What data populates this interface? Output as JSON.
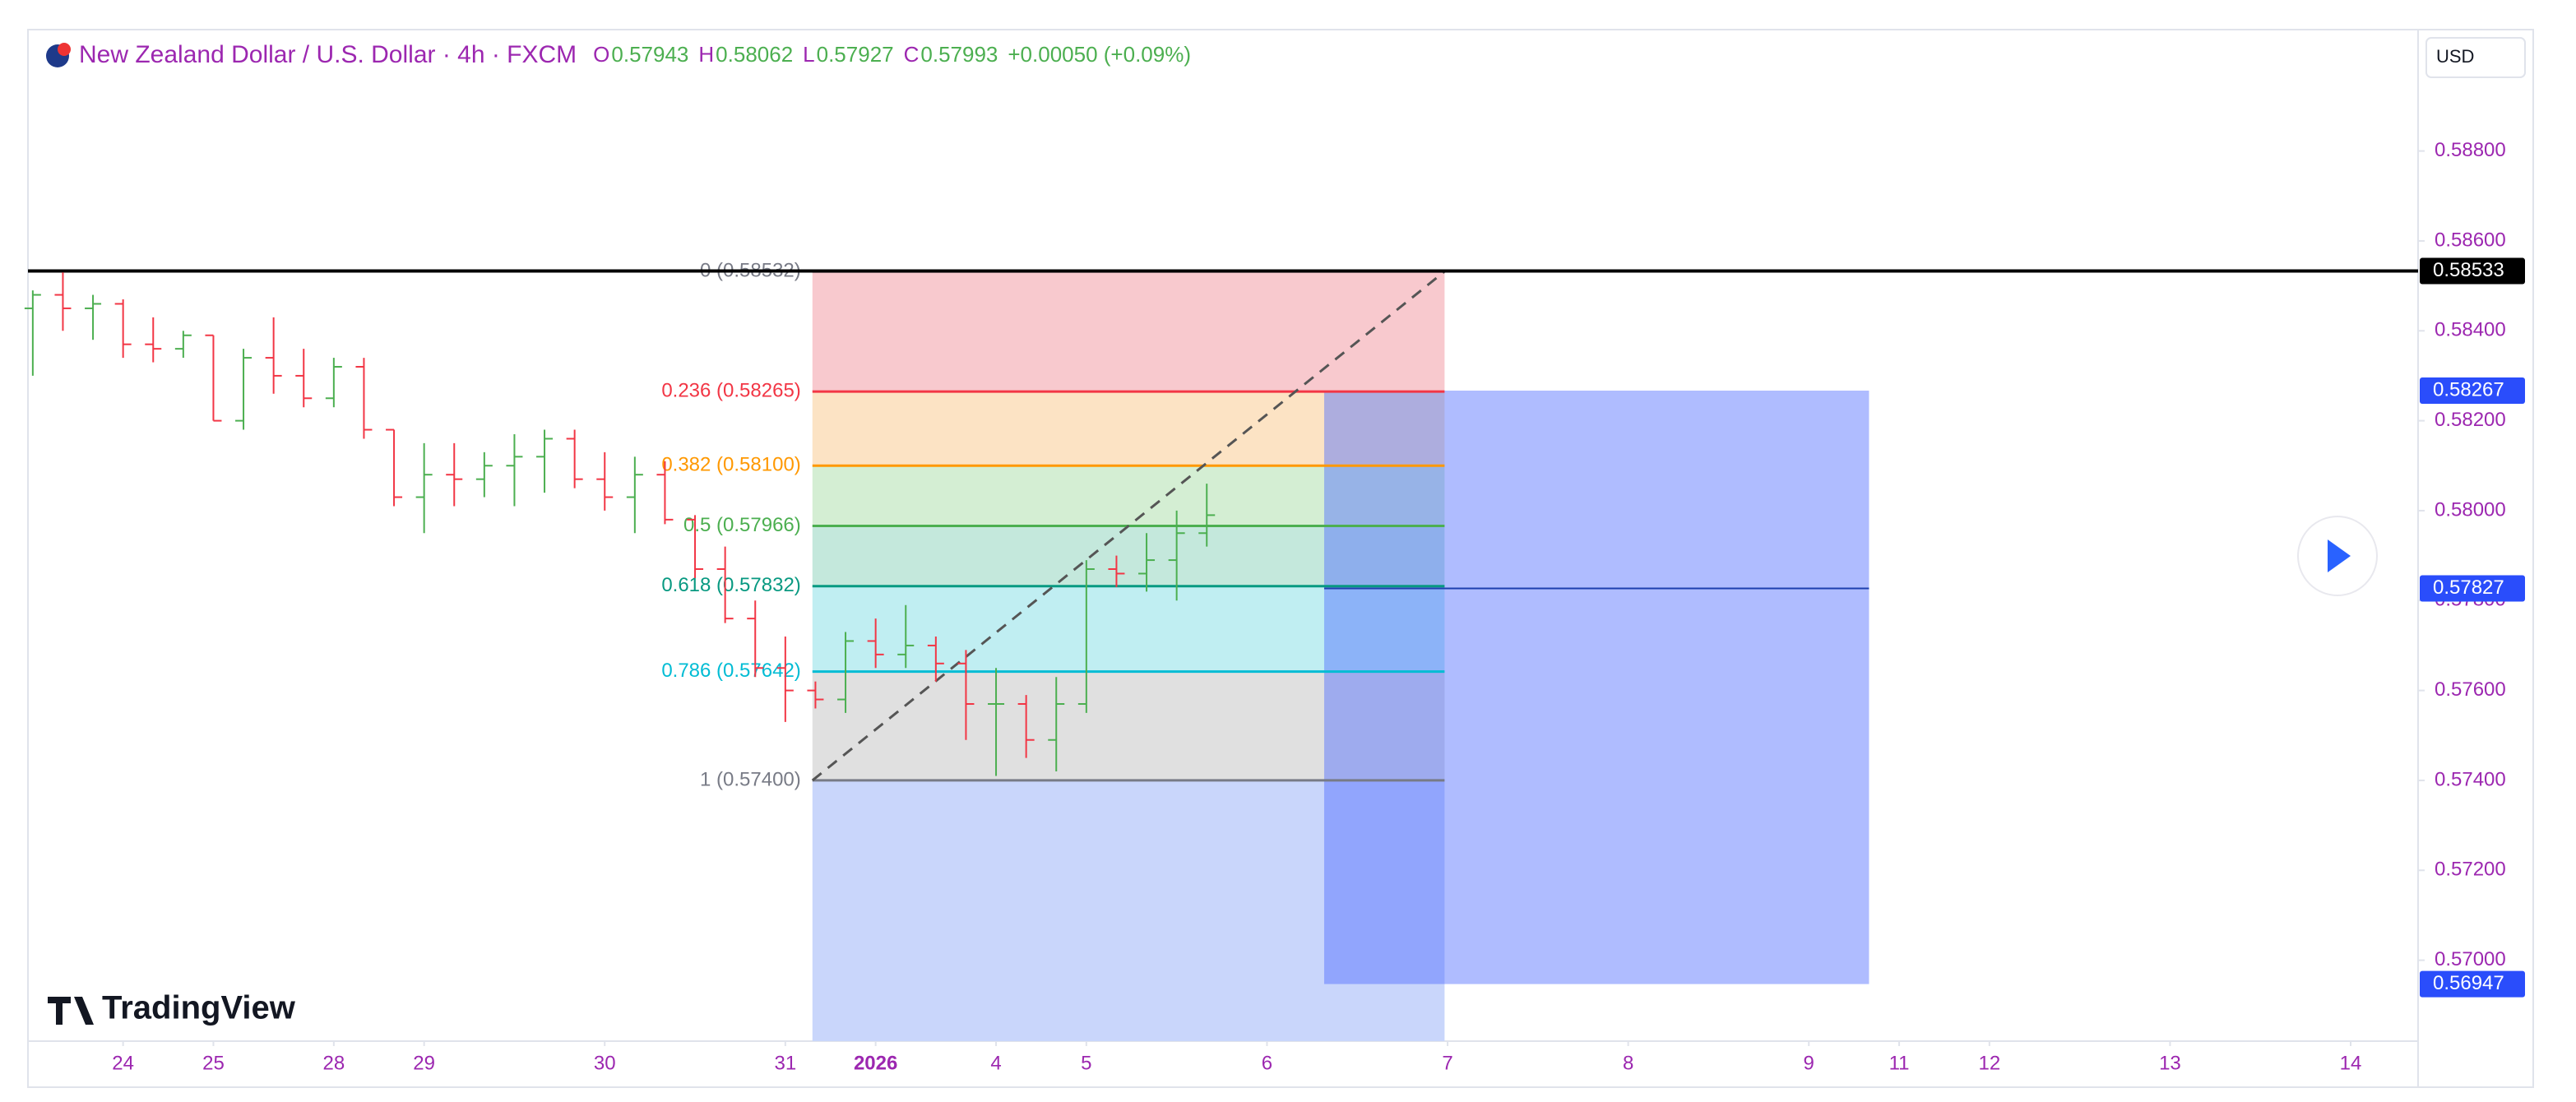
{
  "chart_data": {
    "type": "ohlc",
    "title": "New Zealand Dollar / U.S. Dollar · 4h · FXCM",
    "legend": [
      {
        "label": "O",
        "value": 0.57943
      },
      {
        "label": "H",
        "value": 0.58062
      },
      {
        "label": "L",
        "value": 0.57927
      },
      {
        "label": "C",
        "value": 0.57993
      }
    ],
    "change": "+0.00050 (+0.09%)",
    "currency": "USD",
    "brand": "TradingView",
    "up_color": "#4caf50",
    "down_color": "#f23645",
    "x": [
      0,
      1,
      2,
      3,
      4,
      5,
      6,
      7,
      8,
      9,
      10,
      11,
      12,
      13,
      14,
      15,
      16,
      17,
      18,
      19,
      20,
      21,
      22,
      23,
      24,
      25,
      26,
      27,
      28,
      29,
      30,
      31,
      32,
      33,
      34,
      35,
      36,
      37,
      38,
      39
    ],
    "open": [
      0.5845,
      0.5848,
      0.5845,
      0.5846,
      0.5837,
      0.5836,
      0.5839,
      0.582,
      0.5834,
      0.583,
      0.5825,
      0.5832,
      0.5818,
      0.5803,
      0.5808,
      0.5807,
      0.581,
      0.5812,
      0.5816,
      0.5807,
      0.5803,
      0.5808,
      0.5798,
      0.5787,
      0.5776,
      0.5765,
      0.576,
      0.5758,
      0.5771,
      0.5768,
      0.577,
      0.5766,
      0.5757,
      0.5757,
      0.5749,
      0.5757,
      0.5787,
      0.5786,
      0.5789,
      0.5795
    ],
    "high": [
      0.5849,
      0.5853,
      0.5848,
      0.5847,
      0.5843,
      0.584,
      0.5839,
      0.5836,
      0.5843,
      0.5836,
      0.5834,
      0.5834,
      0.5818,
      0.5815,
      0.5815,
      0.5813,
      0.5817,
      0.5818,
      0.5818,
      0.5813,
      0.5812,
      0.5811,
      0.5799,
      0.5792,
      0.578,
      0.5772,
      0.5762,
      0.5773,
      0.5776,
      0.5779,
      0.5772,
      0.5769,
      0.5765,
      0.5759,
      0.5763,
      0.5789,
      0.579,
      0.5795,
      0.58,
      0.5806
    ],
    "low": [
      0.583,
      0.584,
      0.5838,
      0.5834,
      0.5833,
      0.5834,
      0.582,
      0.5818,
      0.5826,
      0.5823,
      0.5823,
      0.5816,
      0.5801,
      0.5795,
      0.5801,
      0.5803,
      0.5801,
      0.5804,
      0.5805,
      0.58,
      0.5795,
      0.5797,
      0.5785,
      0.5775,
      0.5763,
      0.5753,
      0.5756,
      0.5755,
      0.5765,
      0.5765,
      0.5762,
      0.5749,
      0.5741,
      0.5745,
      0.5742,
      0.5755,
      0.5783,
      0.5782,
      0.578,
      0.5792
    ],
    "close": [
      0.5848,
      0.5845,
      0.5846,
      0.5837,
      0.5836,
      0.5839,
      0.582,
      0.5834,
      0.583,
      0.5825,
      0.5832,
      0.5818,
      0.5803,
      0.5808,
      0.5807,
      0.581,
      0.5812,
      0.5816,
      0.5807,
      0.5803,
      0.5808,
      0.5798,
      0.5787,
      0.5776,
      0.5765,
      0.576,
      0.5758,
      0.5771,
      0.5768,
      0.577,
      0.5766,
      0.5757,
      0.5757,
      0.5749,
      0.5757,
      0.5787,
      0.5786,
      0.5789,
      0.5795,
      0.5799
    ],
    "xlim": [
      -0.16,
      79.24
    ],
    "xticks": [
      {
        "value": 3,
        "label": "24"
      },
      {
        "value": 6,
        "label": "25"
      },
      {
        "value": 10,
        "label": "28"
      },
      {
        "value": 13,
        "label": "29"
      },
      {
        "value": 19,
        "label": "30"
      },
      {
        "value": 25,
        "label": "31"
      },
      {
        "value": 28,
        "label": "2026"
      },
      {
        "value": 32,
        "label": "4"
      },
      {
        "value": 35,
        "label": "5"
      },
      {
        "value": 41,
        "label": "6"
      },
      {
        "value": 47,
        "label": "7"
      },
      {
        "value": 53,
        "label": "8"
      },
      {
        "value": 59,
        "label": "9"
      },
      {
        "value": 62,
        "label": "11"
      },
      {
        "value": 65,
        "label": "12"
      },
      {
        "value": 71,
        "label": "13"
      },
      {
        "value": 77,
        "label": "14"
      }
    ],
    "ylim": [
      0.5682,
      0.5907
    ],
    "yticks": [
      {
        "value": 0.57,
        "label": "0.57000"
      },
      {
        "value": 0.572,
        "label": "0.57200"
      },
      {
        "value": 0.574,
        "label": "0.57400"
      },
      {
        "value": 0.576,
        "label": "0.57600"
      },
      {
        "value": 0.578,
        "label": "0.57800"
      },
      {
        "value": 0.58,
        "label": "0.58000"
      },
      {
        "value": 0.582,
        "label": "0.58200"
      },
      {
        "value": 0.584,
        "label": "0.58400"
      },
      {
        "value": 0.586,
        "label": "0.58600"
      },
      {
        "value": 0.588,
        "label": "0.58800"
      }
    ],
    "hline": 0.58533,
    "fib": {
      "x_range": [
        25.9,
        46.9
      ],
      "levels": [
        {
          "value": 0.58532,
          "label": "0 (0.58532)",
          "color": "#787b86",
          "fill": "#f8c9ce"
        },
        {
          "value": 0.58265,
          "label": "0.236 (0.58265)",
          "color": "#f23645",
          "fill": "#fce3c4"
        },
        {
          "value": 0.581,
          "label": "0.382 (0.58100)",
          "color": "#ff9800",
          "fill": "#d4eed3"
        },
        {
          "value": 0.57966,
          "label": "0.5 (0.57966)",
          "color": "#4caf50",
          "fill": "#c4e8dc"
        },
        {
          "value": 0.57832,
          "label": "0.618 (0.57832)",
          "color": "#089981",
          "fill": "#c0eef2"
        },
        {
          "value": 0.57642,
          "label": "0.786 (0.57642)",
          "color": "#00bcd4",
          "fill": "#e0e0e0"
        },
        {
          "value": 0.574,
          "label": "1 (0.57400)",
          "color": "#787b86",
          "fill": "#c9d6fb"
        }
      ]
    },
    "position": {
      "x_range": [
        42.9,
        61
      ],
      "top": 0.58267,
      "entry": 0.57827,
      "bottom": 0.56947,
      "color": "#4d6bfe"
    },
    "price_markers": [
      {
        "value": 0.58533,
        "color": "#000000"
      },
      {
        "value": 0.58267,
        "color": "#2a4dfb"
      },
      {
        "value": 0.57827,
        "color": "#2a4dfb"
      },
      {
        "value": 0.56947,
        "color": "#2a4dfb"
      }
    ]
  }
}
